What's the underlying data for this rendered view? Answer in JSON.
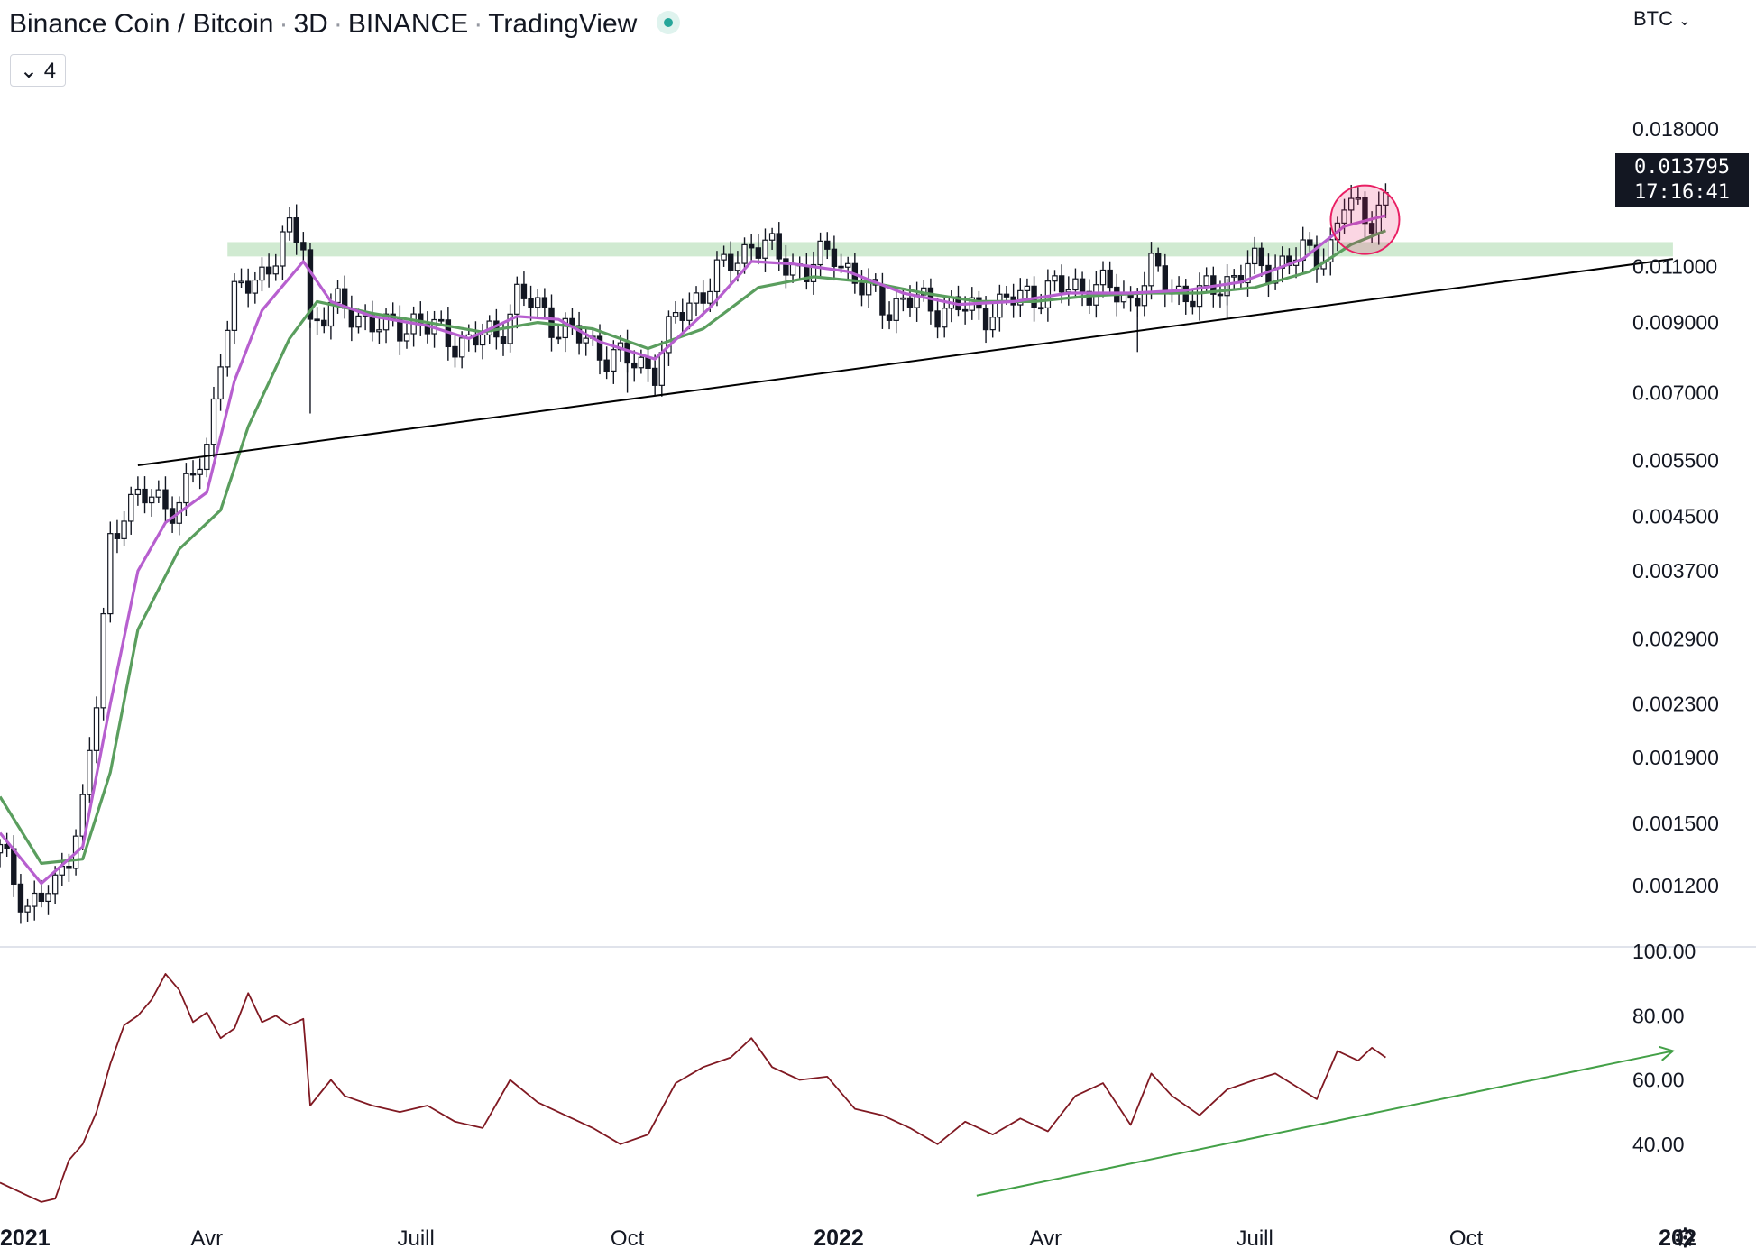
{
  "header": {
    "symbol": "Binance Coin / Bitcoin",
    "interval": "3D",
    "exchange": "BINANCE",
    "source": "TradingView",
    "indicators_count": "4",
    "collapse_icon": "chevron-down-icon",
    "status_icon": "market-open-dot-icon"
  },
  "currency_button": "BTC",
  "last_price": "0.013795",
  "countdown": "17:16:41",
  "settings_icon": "gear-icon",
  "colors": {
    "up": "#ffffff",
    "down": "#131722",
    "ema_fast": "#b75fcf",
    "ema_slow": "#5a9e5e",
    "rsi": "#801922",
    "resistance_zone": "#c8e6c9",
    "trendline": "#000000",
    "rsi_trend": "#43a047",
    "highlight": "#e91e63"
  },
  "chart_data": [
    {
      "type": "candlestick",
      "scale": "log",
      "ylim": [
        0.00098,
        0.021
      ],
      "yticks": [
        "0.018000",
        "0.011000",
        "0.009000",
        "0.007000",
        "0.005500",
        "0.004500",
        "0.003700",
        "0.002900",
        "0.002300",
        "0.001900",
        "0.001500",
        "0.001200"
      ],
      "x_labels": [
        "2021",
        "Avr",
        "Juill",
        "Oct",
        "2022",
        "Avr",
        "Juill",
        "Oct",
        "202"
      ],
      "x_label_dates": [
        "2021-01-01",
        "2021-04-01",
        "2021-07-01",
        "2021-10-01",
        "2022-01-01",
        "2022-04-01",
        "2022-07-01",
        "2022-10-01",
        "2023-01-01"
      ],
      "x_range": [
        "2021-01-01",
        "2023-01-01"
      ],
      "closes_path": [
        [
          "2021-01-01",
          0.00135
        ],
        [
          "2021-01-13",
          0.00112
        ],
        [
          "2021-01-25",
          0.00118
        ],
        [
          "2021-02-06",
          0.0016
        ],
        [
          "2021-02-12",
          0.0023
        ],
        [
          "2021-02-18",
          0.0041
        ],
        [
          "2021-02-24",
          0.0047
        ],
        [
          "2021-03-08",
          0.0048
        ],
        [
          "2021-03-20",
          0.0047
        ],
        [
          "2021-04-01",
          0.0057
        ],
        [
          "2021-04-07",
          0.0082
        ],
        [
          "2021-04-13",
          0.0098
        ],
        [
          "2021-04-25",
          0.0108
        ],
        [
          "2021-05-07",
          0.0123
        ],
        [
          "2021-05-13",
          0.0121
        ],
        [
          "2021-05-16",
          0.009
        ],
        [
          "2021-05-25",
          0.0095
        ],
        [
          "2021-06-06",
          0.0093
        ],
        [
          "2021-06-18",
          0.0087
        ],
        [
          "2021-06-30",
          0.0091
        ],
        [
          "2021-07-12",
          0.0086
        ],
        [
          "2021-07-24",
          0.0084
        ],
        [
          "2021-08-05",
          0.0086
        ],
        [
          "2021-08-14",
          0.0099
        ],
        [
          "2021-08-26",
          0.0093
        ],
        [
          "2021-09-07",
          0.0086
        ],
        [
          "2021-09-19",
          0.0082
        ],
        [
          "2021-10-01",
          0.0078
        ],
        [
          "2021-10-13",
          0.0077
        ],
        [
          "2021-10-22",
          0.0091
        ],
        [
          "2021-10-31",
          0.0099
        ],
        [
          "2021-11-12",
          0.0109
        ],
        [
          "2021-11-24",
          0.012
        ],
        [
          "2021-12-06",
          0.0114
        ],
        [
          "2021-12-18",
          0.0108
        ],
        [
          "2021-12-30",
          0.0117
        ],
        [
          "2022-01-11",
          0.0101
        ],
        [
          "2022-01-23",
          0.0096
        ],
        [
          "2022-02-04",
          0.0097
        ],
        [
          "2022-02-16",
          0.0095
        ],
        [
          "2022-02-28",
          0.0094
        ],
        [
          "2022-03-12",
          0.0095
        ],
        [
          "2022-03-24",
          0.01
        ],
        [
          "2022-04-05",
          0.0101
        ],
        [
          "2022-04-17",
          0.0103
        ],
        [
          "2022-04-29",
          0.0101
        ],
        [
          "2022-05-08",
          0.0098
        ],
        [
          "2022-05-17",
          0.0108
        ],
        [
          "2022-05-26",
          0.0102
        ],
        [
          "2022-06-07",
          0.0098
        ],
        [
          "2022-06-16",
          0.0104
        ],
        [
          "2022-06-28",
          0.0109
        ],
        [
          "2022-07-10",
          0.0111
        ],
        [
          "2022-07-22",
          0.0114
        ],
        [
          "2022-08-03",
          0.0118
        ],
        [
          "2022-08-09",
          0.0137
        ],
        [
          "2022-08-15",
          0.0134
        ],
        [
          "2022-08-21",
          0.0133
        ],
        [
          "2022-08-27",
          0.0138
        ]
      ],
      "lower_wicks": [
        [
          "2021-05-16",
          0.0065
        ],
        [
          "2021-10-01",
          0.007
        ],
        [
          "2022-05-11",
          0.0081
        ],
        [
          "2022-06-19",
          0.0091
        ]
      ],
      "ema_fast_path": [
        [
          "2021-01-01",
          0.00145
        ],
        [
          "2021-01-19",
          0.00121
        ],
        [
          "2021-02-06",
          0.00138
        ],
        [
          "2021-02-18",
          0.0023
        ],
        [
          "2021-03-02",
          0.0037
        ],
        [
          "2021-03-14",
          0.0044
        ],
        [
          "2021-04-01",
          0.0049
        ],
        [
          "2021-04-13",
          0.0073
        ],
        [
          "2021-04-25",
          0.0094
        ],
        [
          "2021-05-13",
          0.0112
        ],
        [
          "2021-05-25",
          0.0097
        ],
        [
          "2021-06-12",
          0.0092
        ],
        [
          "2021-07-06",
          0.0089
        ],
        [
          "2021-07-24",
          0.0085
        ],
        [
          "2021-08-14",
          0.0092
        ],
        [
          "2021-09-01",
          0.0091
        ],
        [
          "2021-09-19",
          0.0084
        ],
        [
          "2021-10-13",
          0.0079
        ],
        [
          "2021-11-06",
          0.0095
        ],
        [
          "2021-11-24",
          0.0112
        ],
        [
          "2021-12-12",
          0.0111
        ],
        [
          "2022-01-05",
          0.0108
        ],
        [
          "2022-01-29",
          0.01
        ],
        [
          "2022-02-22",
          0.0096
        ],
        [
          "2022-03-18",
          0.0097
        ],
        [
          "2022-04-11",
          0.01
        ],
        [
          "2022-05-08",
          0.01
        ],
        [
          "2022-06-01",
          0.0101
        ],
        [
          "2022-06-25",
          0.0104
        ],
        [
          "2022-07-22",
          0.0113
        ],
        [
          "2022-08-09",
          0.0127
        ],
        [
          "2022-08-27",
          0.0132
        ]
      ],
      "ema_slow_path": [
        [
          "2021-01-01",
          0.00165
        ],
        [
          "2021-01-19",
          0.0013
        ],
        [
          "2021-02-06",
          0.00132
        ],
        [
          "2021-02-18",
          0.0018
        ],
        [
          "2021-03-02",
          0.003
        ],
        [
          "2021-03-20",
          0.004
        ],
        [
          "2021-04-07",
          0.0046
        ],
        [
          "2021-04-19",
          0.0062
        ],
        [
          "2021-05-07",
          0.0085
        ],
        [
          "2021-05-19",
          0.0097
        ],
        [
          "2021-06-12",
          0.0093
        ],
        [
          "2021-07-06",
          0.009
        ],
        [
          "2021-07-30",
          0.0087
        ],
        [
          "2021-08-23",
          0.009
        ],
        [
          "2021-09-16",
          0.0088
        ],
        [
          "2021-10-10",
          0.0082
        ],
        [
          "2021-11-03",
          0.0088
        ],
        [
          "2021-11-27",
          0.0102
        ],
        [
          "2021-12-21",
          0.0106
        ],
        [
          "2022-01-14",
          0.0104
        ],
        [
          "2022-02-07",
          0.01
        ],
        [
          "2022-03-03",
          0.0097
        ],
        [
          "2022-03-27",
          0.0097
        ],
        [
          "2022-04-20",
          0.0099
        ],
        [
          "2022-05-14",
          0.01
        ],
        [
          "2022-06-07",
          0.01
        ],
        [
          "2022-07-01",
          0.0102
        ],
        [
          "2022-07-25",
          0.0108
        ],
        [
          "2022-08-12",
          0.0119
        ],
        [
          "2022-08-27",
          0.0125
        ]
      ],
      "resistance_zone": {
        "from": 0.0114,
        "to": 0.012,
        "start": "2021-04-10",
        "end": "2022-12-30"
      },
      "trendline": {
        "start": [
          "2021-03-02",
          0.0054
        ],
        "end": [
          "2022-12-30",
          0.0113
        ]
      },
      "highlight": {
        "date": "2022-08-18",
        "value": 0.013
      }
    },
    {
      "type": "line",
      "ylim": [
        20,
        100
      ],
      "yticks": [
        "100.00",
        "80.00",
        "60.00",
        "40.00"
      ],
      "x_range": [
        "2021-01-01",
        "2023-01-01"
      ],
      "values": [
        [
          "2021-01-01",
          28
        ],
        [
          "2021-01-13",
          24
        ],
        [
          "2021-01-19",
          22
        ],
        [
          "2021-01-25",
          23
        ],
        [
          "2021-01-31",
          35
        ],
        [
          "2021-02-06",
          40
        ],
        [
          "2021-02-12",
          50
        ],
        [
          "2021-02-18",
          65
        ],
        [
          "2021-02-24",
          77
        ],
        [
          "2021-03-02",
          80
        ],
        [
          "2021-03-08",
          85
        ],
        [
          "2021-03-14",
          93
        ],
        [
          "2021-03-20",
          88
        ],
        [
          "2021-03-26",
          78
        ],
        [
          "2021-04-01",
          81
        ],
        [
          "2021-04-07",
          73
        ],
        [
          "2021-04-13",
          76
        ],
        [
          "2021-04-19",
          87
        ],
        [
          "2021-04-25",
          78
        ],
        [
          "2021-05-01",
          80
        ],
        [
          "2021-05-07",
          77
        ],
        [
          "2021-05-13",
          79
        ],
        [
          "2021-05-16",
          52
        ],
        [
          "2021-05-25",
          60
        ],
        [
          "2021-05-31",
          55
        ],
        [
          "2021-06-12",
          52
        ],
        [
          "2021-06-24",
          50
        ],
        [
          "2021-07-06",
          52
        ],
        [
          "2021-07-18",
          47
        ],
        [
          "2021-07-30",
          45
        ],
        [
          "2021-08-11",
          60
        ],
        [
          "2021-08-23",
          53
        ],
        [
          "2021-09-04",
          49
        ],
        [
          "2021-09-16",
          45
        ],
        [
          "2021-09-28",
          40
        ],
        [
          "2021-10-10",
          43
        ],
        [
          "2021-10-22",
          59
        ],
        [
          "2021-11-03",
          64
        ],
        [
          "2021-11-15",
          67
        ],
        [
          "2021-11-24",
          73
        ],
        [
          "2021-12-03",
          64
        ],
        [
          "2021-12-15",
          60
        ],
        [
          "2021-12-27",
          61
        ],
        [
          "2022-01-08",
          51
        ],
        [
          "2022-01-20",
          49
        ],
        [
          "2022-02-01",
          45
        ],
        [
          "2022-02-13",
          40
        ],
        [
          "2022-02-25",
          47
        ],
        [
          "2022-03-09",
          43
        ],
        [
          "2022-03-21",
          48
        ],
        [
          "2022-04-02",
          44
        ],
        [
          "2022-04-14",
          55
        ],
        [
          "2022-04-26",
          59
        ],
        [
          "2022-05-08",
          46
        ],
        [
          "2022-05-17",
          62
        ],
        [
          "2022-05-26",
          55
        ],
        [
          "2022-06-07",
          49
        ],
        [
          "2022-06-19",
          57
        ],
        [
          "2022-07-01",
          60
        ],
        [
          "2022-07-10",
          62
        ],
        [
          "2022-07-19",
          58
        ],
        [
          "2022-07-28",
          54
        ],
        [
          "2022-08-06",
          69
        ],
        [
          "2022-08-15",
          66
        ],
        [
          "2022-08-21",
          70
        ],
        [
          "2022-08-27",
          67
        ]
      ],
      "trendline": {
        "start": [
          "2022-03-02",
          24
        ],
        "end": [
          "2022-12-30",
          69
        ]
      }
    }
  ]
}
